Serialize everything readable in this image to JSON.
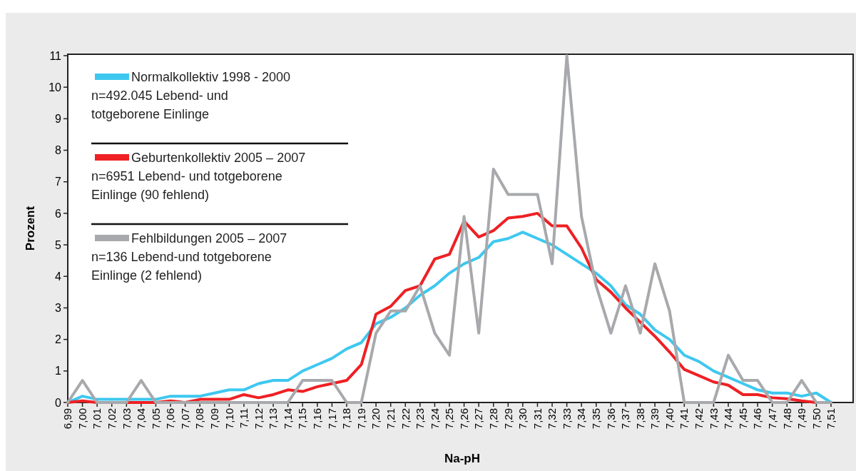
{
  "chart_data": {
    "type": "line",
    "xlabel": "Na-pH",
    "ylabel": "Prozent",
    "categories": [
      "6,99",
      "7,00",
      "7,01",
      "7,02",
      "7,03",
      "7,04",
      "7,05",
      "7,06",
      "7,07",
      "7,08",
      "7,09",
      "7,10",
      "7,11",
      "7,12",
      "7,13",
      "7,14",
      "7,15",
      "7,16",
      "7,17",
      "7,18",
      "7,19",
      "7,20",
      "7,21",
      "7,22",
      "7,23",
      "7,24",
      "7,25",
      "7,26",
      "7,27",
      "7,28",
      "7,29",
      "7,30",
      "7,31",
      "7,32",
      "7,33",
      "7,34",
      "7,35",
      "7,36",
      "7,37",
      "7,38",
      "7,39",
      "7,40",
      "7,41",
      "7,42",
      "7,43",
      "7,44",
      "7,45",
      "7,46",
      "7,47",
      "7,48",
      "7,49",
      "7,50",
      "7,51"
    ],
    "ylim": [
      0,
      11
    ],
    "yticks": [
      0,
      1,
      2,
      3,
      4,
      5,
      6,
      7,
      8,
      9,
      10,
      11
    ],
    "grid": false,
    "legend": "top left",
    "marker": "none",
    "line_style": "solid",
    "series": [
      {
        "name": "Normalkollektiv 1998 - 2000\nn=492.045 Lebend- und\ntotgeborene Einlinge",
        "color": "#3ec8f0",
        "values": [
          0,
          0.2,
          0.1,
          0.1,
          0.1,
          0.1,
          0.1,
          0.2,
          0.2,
          0.2,
          0.3,
          0.4,
          0.4,
          0.6,
          0.7,
          0.7,
          1.0,
          1.2,
          1.4,
          1.7,
          1.9,
          2.5,
          2.7,
          3.0,
          3.4,
          3.7,
          4.1,
          4.4,
          4.6,
          5.1,
          5.2,
          5.4,
          5.2,
          5.0,
          4.7,
          4.4,
          4.1,
          3.7,
          3.1,
          2.8,
          2.3,
          2.0,
          1.5,
          1.3,
          1.0,
          0.8,
          0.6,
          0.4,
          0.3,
          0.3,
          0.2,
          0.3,
          0
        ]
      },
      {
        "name": "Geburtenkollektiv 2005 – 2007\nn=6951 Lebend- und totgeborene\nEinlinge (90 fehlend)",
        "color": "#ee2024",
        "values": [
          0,
          0.05,
          0,
          0,
          0,
          0,
          0,
          0.05,
          0,
          0.1,
          0.1,
          0.1,
          0.25,
          0.15,
          0.25,
          0.4,
          0.35,
          0.5,
          0.6,
          0.7,
          1.2,
          2.8,
          3.05,
          3.55,
          3.7,
          4.55,
          4.7,
          5.75,
          5.25,
          5.45,
          5.85,
          5.9,
          6.0,
          5.6,
          5.6,
          4.9,
          3.9,
          3.5,
          3.0,
          2.55,
          2.1,
          1.6,
          1.05,
          0.85,
          0.65,
          0.55,
          0.25,
          0.25,
          0.15,
          0.12,
          0.05,
          0,
          0
        ]
      },
      {
        "name": "Fehlbildungen 2005 – 2007\nn=136 Lebend-und totgeborene\nEinlinge (2 fehlend)",
        "color": "#a7a9ac",
        "values": [
          0,
          0.7,
          0,
          0,
          0,
          0.7,
          0,
          0,
          0,
          0,
          0,
          0,
          0,
          0,
          0,
          0,
          0.7,
          0.7,
          0.7,
          0,
          0,
          2.2,
          2.9,
          2.9,
          3.7,
          2.2,
          1.5,
          5.9,
          2.2,
          7.4,
          6.6,
          6.6,
          6.6,
          4.4,
          11,
          5.9,
          3.7,
          2.2,
          3.7,
          2.2,
          4.4,
          2.9,
          0,
          0,
          0,
          1.5,
          0.7,
          0.7,
          0,
          0,
          0.7,
          0,
          0
        ]
      }
    ]
  }
}
